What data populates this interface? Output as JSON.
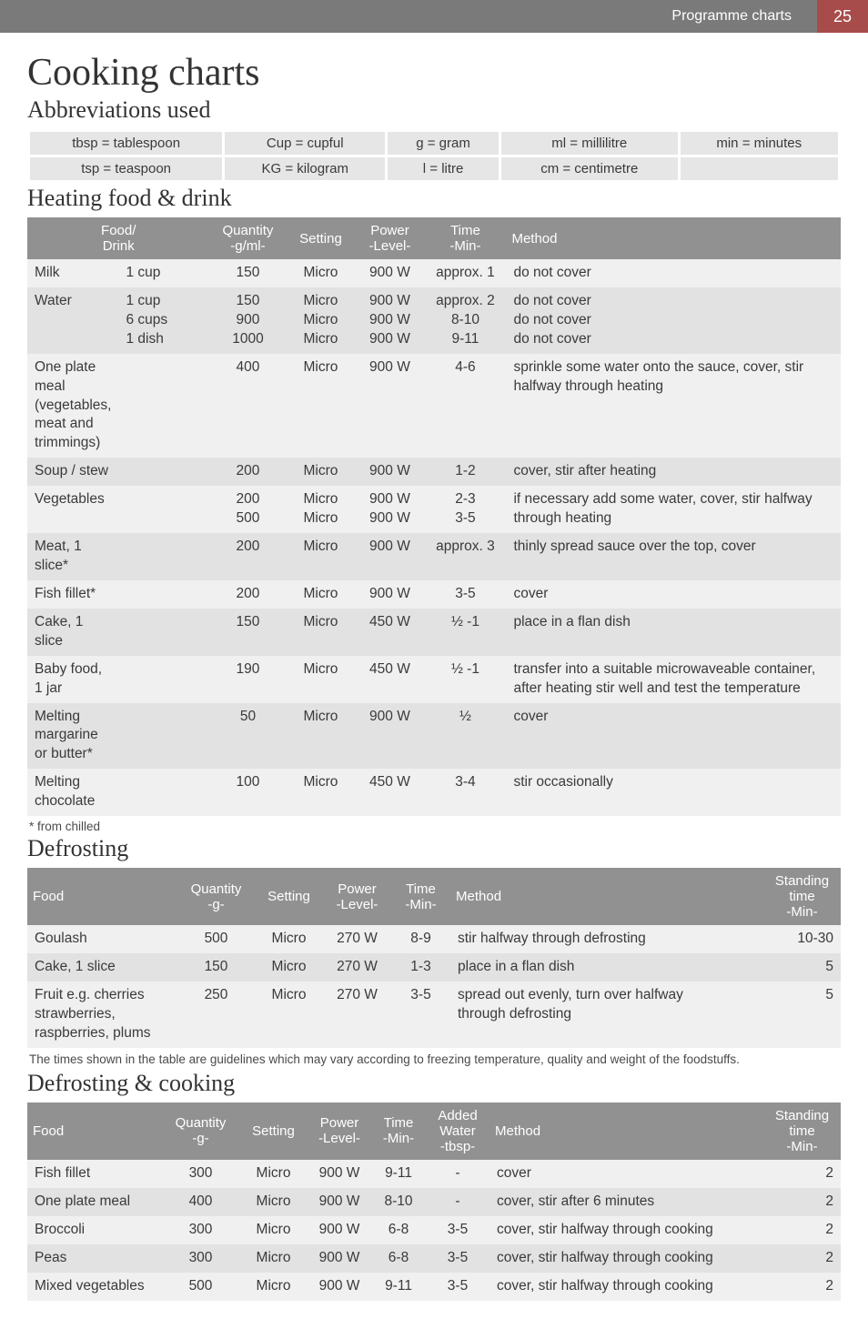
{
  "header": {
    "section": "Programme charts",
    "page": "25"
  },
  "title": "Cooking charts",
  "abbrev": {
    "heading": "Abbreviations used",
    "rows": [
      [
        "tbsp = tablespoon",
        "Cup = cupful",
        "g = gram",
        "ml = millilitre",
        "min = minutes"
      ],
      [
        "tsp = teaspoon",
        "KG = kilogram",
        "l = litre",
        "cm = centimetre",
        ""
      ]
    ]
  },
  "heating": {
    "heading": "Heating food & drink",
    "headers": [
      "Food/\nDrink",
      "Quantity\n-g/ml-",
      "Setting",
      "Power\n-Level-",
      "Time\n-Min-",
      "Method"
    ],
    "rows": [
      {
        "food": "Milk",
        "sub": "1 cup",
        "qty": "150",
        "setting": "Micro",
        "power": "900 W",
        "time": "approx. 1",
        "method": "do not cover",
        "shade": "light"
      },
      {
        "food": "Water",
        "sub": "1 cup\n6 cups\n1 dish",
        "qty": "150\n900\n1000",
        "setting": "Micro\nMicro\nMicro",
        "power": "900 W\n900 W\n900 W",
        "time": "approx. 2\n8-10\n9-11",
        "method": "do not cover\ndo not cover\ndo not cover",
        "shade": "dark"
      },
      {
        "food": "One plate meal\n(vegetables, meat and\ntrimmings)",
        "sub": "",
        "qty": "400",
        "setting": "Micro",
        "power": "900 W",
        "time": "4-6",
        "method": "sprinkle some water onto the sauce, cover, stir\nhalfway through heating",
        "shade": "light"
      },
      {
        "food": "Soup / stew",
        "sub": "",
        "qty": "200",
        "setting": "Micro",
        "power": "900 W",
        "time": "1-2",
        "method": "cover, stir after heating",
        "shade": "dark"
      },
      {
        "food": "Vegetables",
        "sub": "",
        "qty": "200\n500",
        "setting": "Micro\nMicro",
        "power": "900 W\n900 W",
        "time": "2-3\n3-5",
        "method": "if necessary add some water, cover, stir halfway\nthrough heating",
        "shade": "light"
      },
      {
        "food": "Meat, 1 slice*",
        "sub": "",
        "qty": "200",
        "setting": "Micro",
        "power": "900 W",
        "time": "approx. 3",
        "method": "thinly spread sauce over the top, cover",
        "shade": "dark"
      },
      {
        "food": "Fish fillet*",
        "sub": "",
        "qty": "200",
        "setting": "Micro",
        "power": "900 W",
        "time": "3-5",
        "method": "cover",
        "shade": "light"
      },
      {
        "food": "Cake, 1 slice",
        "sub": "",
        "qty": "150",
        "setting": "Micro",
        "power": "450 W",
        "time": "½ -1",
        "method": "place in a flan dish",
        "shade": "dark"
      },
      {
        "food": "Baby food, 1 jar",
        "sub": "",
        "qty": "190",
        "setting": "Micro",
        "power": "450 W",
        "time": "½ -1",
        "method": "transfer into a suitable microwaveable container,\nafter heating stir well and test the temperature",
        "shade": "light"
      },
      {
        "food": "Melting margarine\nor butter*",
        "sub": "",
        "qty": "50",
        "setting": "Micro",
        "power": "900 W",
        "time": "½",
        "method": "cover",
        "shade": "dark"
      },
      {
        "food": "Melting chocolate",
        "sub": "",
        "qty": "100",
        "setting": "Micro",
        "power": "450 W",
        "time": "3-4",
        "method": "stir occasionally",
        "shade": "light"
      }
    ],
    "footnote": "* from chilled"
  },
  "defrosting": {
    "heading": "Defrosting",
    "headers": [
      "Food",
      "Quantity\n-g-",
      "Setting",
      "Power\n-Level-",
      "Time\n-Min-",
      "Method",
      "Standing\ntime\n-Min-"
    ],
    "rows": [
      {
        "food": "Goulash",
        "qty": "500",
        "setting": "Micro",
        "power": "270 W",
        "time": "8-9",
        "method": "stir halfway through defrosting",
        "stand": "10-30",
        "shade": "light"
      },
      {
        "food": "Cake, 1 slice",
        "qty": "150",
        "setting": "Micro",
        "power": "270 W",
        "time": "1-3",
        "method": "place in a flan dish",
        "stand": "5",
        "shade": "dark"
      },
      {
        "food": "Fruit e.g. cherries\nstrawberries,\nraspberries, plums",
        "qty": "250",
        "setting": "Micro",
        "power": "270 W",
        "time": "3-5",
        "method": "spread out evenly, turn over halfway\nthrough defrosting",
        "stand": "5",
        "shade": "light"
      }
    ],
    "note": "The times shown in the table are guidelines which may vary according to freezing temperature, quality and weight of the foodstuffs."
  },
  "defrostcook": {
    "heading": "Defrosting & cooking",
    "headers": [
      "Food",
      "Quantity\n-g-",
      "Setting",
      "Power\n-Level-",
      "Time\n-Min-",
      "Added\nWater\n-tbsp-",
      "Method",
      "Standing\ntime\n-Min-"
    ],
    "rows": [
      {
        "food": "Fish fillet",
        "qty": "300",
        "setting": "Micro",
        "power": "900 W",
        "time": "9-11",
        "water": "-",
        "method": "cover",
        "stand": "2",
        "shade": "light"
      },
      {
        "food": "One plate meal",
        "qty": "400",
        "setting": "Micro",
        "power": "900 W",
        "time": "8-10",
        "water": "-",
        "method": "cover, stir after 6 minutes",
        "stand": "2",
        "shade": "dark"
      },
      {
        "food": "Broccoli",
        "qty": "300",
        "setting": "Micro",
        "power": "900 W",
        "time": "6-8",
        "water": "3-5",
        "method": "cover, stir halfway through cooking",
        "stand": "2",
        "shade": "light"
      },
      {
        "food": "Peas",
        "qty": "300",
        "setting": "Micro",
        "power": "900 W",
        "time": "6-8",
        "water": "3-5",
        "method": "cover, stir halfway through cooking",
        "stand": "2",
        "shade": "dark"
      },
      {
        "food": "Mixed vegetables",
        "qty": "500",
        "setting": "Micro",
        "power": "900 W",
        "time": "9-11",
        "water": "3-5",
        "method": "cover, stir halfway through cooking",
        "stand": "2",
        "shade": "light"
      }
    ]
  },
  "colors": {
    "header_bg": "#7a7a7a",
    "page_num_bg": "#a84b4b",
    "th_bg": "#919191",
    "row_light": "#f0f0f0",
    "row_dark": "#e2e2e2",
    "abbrev_bg": "#e6e6e6"
  }
}
